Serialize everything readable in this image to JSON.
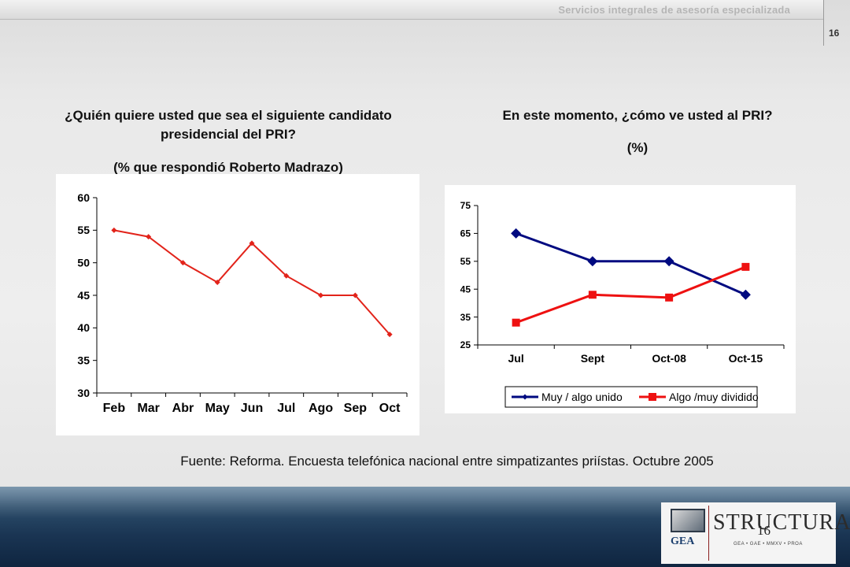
{
  "header": {
    "org_name": "Servicios integrales de asesoría especializada",
    "page_number": "16"
  },
  "left": {
    "title": "¿Quién quiere usted que sea el siguiente candidato presidencial del PRI?",
    "subtitle": "(% que respondió Roberto Madrazo)"
  },
  "right": {
    "title": "En este momento, ¿cómo ve usted al PRI?",
    "subtitle": "(%)"
  },
  "chart_data": [
    {
      "type": "line",
      "categories": [
        "Feb",
        "Mar",
        "Abr",
        "May",
        "Jun",
        "Jul",
        "Ago",
        "Sep",
        "Oct"
      ],
      "series": [
        {
          "values": [
            55,
            54,
            50,
            47,
            53,
            48,
            45,
            45,
            39
          ],
          "color": "#e2231a",
          "marker": "diamond"
        }
      ],
      "ylim": [
        30,
        60
      ],
      "yticks": [
        30,
        35,
        40,
        45,
        50,
        55,
        60
      ],
      "grid": false,
      "legend": "none"
    },
    {
      "type": "line",
      "categories": [
        "Jul",
        "Sept",
        "Oct-08",
        "Oct-15"
      ],
      "series": [
        {
          "name": "Muy / algo unido",
          "values": [
            65,
            55,
            55,
            43
          ],
          "color": "#000a80",
          "marker": "diamond"
        },
        {
          "name": "Algo /muy dividido",
          "values": [
            33,
            43,
            42,
            53
          ],
          "color": "#ee1111",
          "marker": "square"
        }
      ],
      "ylim": [
        25,
        75
      ],
      "yticks": [
        25,
        35,
        45,
        55,
        65,
        75
      ],
      "grid": false,
      "legend": "bottom"
    }
  ],
  "source": "Fuente: Reforma. Encuesta telefónica nacional entre simpatizantes priístas. Octubre 2005",
  "footer": {
    "logo_gea": "GEA",
    "logo_structura": "STRUCTURA",
    "logo_structura_sub": "GEA • GAE • MMXV • PROA",
    "page_number": "16"
  }
}
